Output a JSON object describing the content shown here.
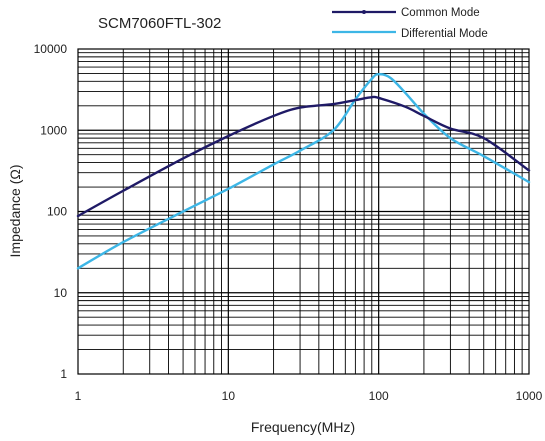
{
  "chart_data": {
    "type": "line",
    "title": "SCM7060FTL-302",
    "xlabel": "Frequency(MHz)",
    "ylabel": "Impedance (Ω)",
    "x_scale": "log",
    "y_scale": "log",
    "xlim": [
      1,
      1000
    ],
    "ylim": [
      1,
      10000
    ],
    "x_ticks": [
      "1",
      "10",
      "100",
      "1000"
    ],
    "y_ticks": [
      "1",
      "10",
      "100",
      "1000",
      "10000"
    ],
    "grid": true,
    "legend_position": "top-right",
    "series": [
      {
        "name": "Common Mode",
        "color": "#1f1a66",
        "x": [
          1,
          2,
          5,
          10,
          20,
          30,
          50,
          70,
          90,
          100,
          150,
          200,
          300,
          500,
          1000
        ],
        "y": [
          88,
          180,
          450,
          850,
          1500,
          1900,
          2100,
          2350,
          2550,
          2500,
          1950,
          1500,
          1050,
          800,
          320
        ]
      },
      {
        "name": "Differential Mode",
        "color": "#3db6e6",
        "x": [
          1,
          2,
          5,
          10,
          20,
          30,
          50,
          70,
          90,
          100,
          120,
          150,
          200,
          300,
          500,
          1000
        ],
        "y": [
          20,
          42,
          100,
          190,
          380,
          560,
          1000,
          2400,
          4300,
          4900,
          4400,
          2900,
          1600,
          800,
          480,
          230
        ]
      }
    ]
  }
}
